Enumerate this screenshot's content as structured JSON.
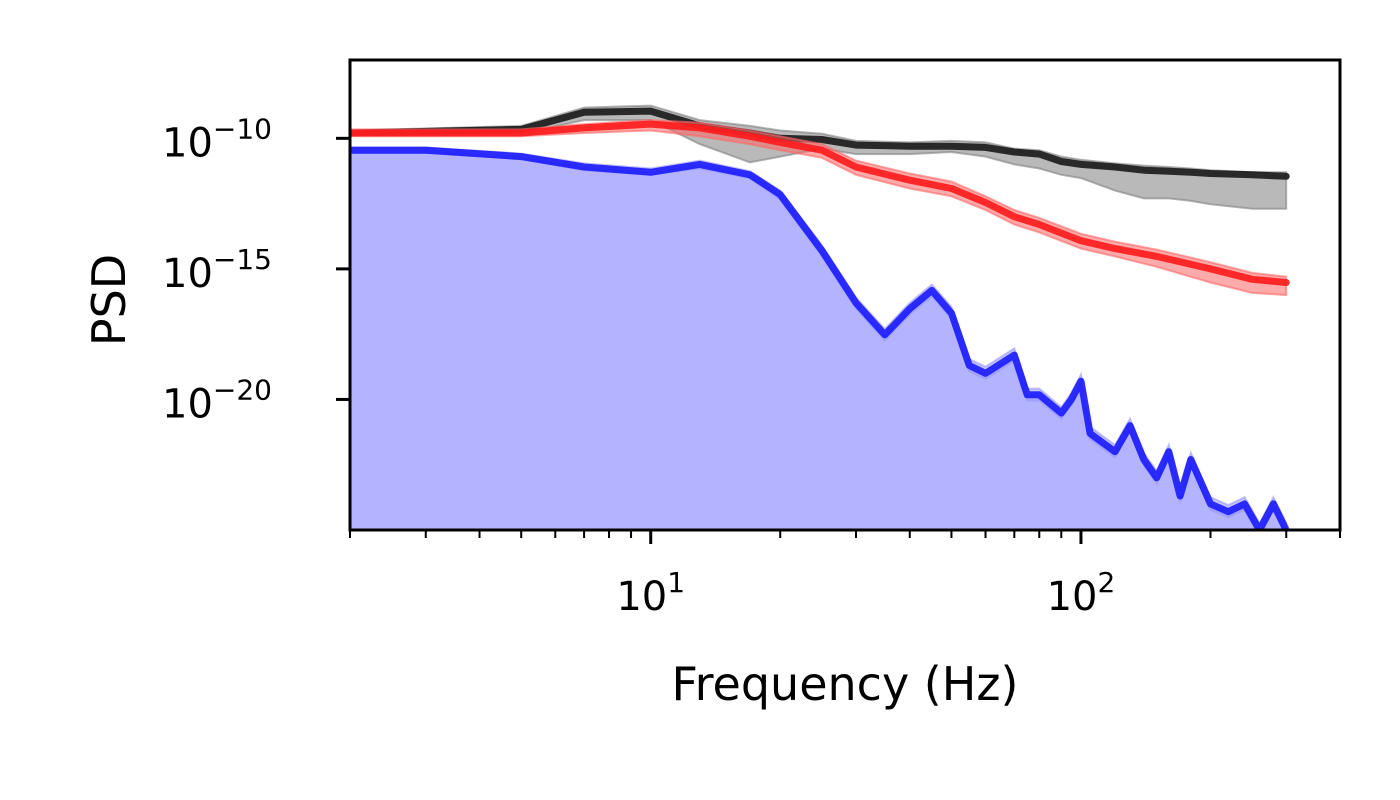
{
  "chart_data": {
    "type": "line",
    "title": "",
    "xlabel": "Frequency (Hz)",
    "ylabel": "PSD",
    "xscale": "log",
    "yscale": "log",
    "xlim": [
      2.0,
      400.0
    ],
    "ylim": [
      1e-25,
      1e-07
    ],
    "grid": false,
    "x_ticks": [
      {
        "base": "10",
        "exp": "1",
        "value": 10
      },
      {
        "base": "10",
        "exp": "2",
        "value": 100
      }
    ],
    "y_ticks": [
      {
        "base": "10",
        "exp": "−10",
        "value": 1e-10
      },
      {
        "base": "10",
        "exp": "−15",
        "value": 1e-15
      },
      {
        "base": "10",
        "exp": "−20",
        "value": 1e-20
      }
    ],
    "series": [
      {
        "color": "#1a1a1a",
        "band_color": "#808080",
        "x": [
          2,
          5,
          7,
          10,
          13,
          17,
          20,
          25,
          30,
          40,
          50,
          60,
          70,
          80,
          90,
          100,
          120,
          140,
          160,
          180,
          200,
          250,
          300
        ],
        "y": [
          1.6e-10,
          2.2e-10,
          1e-09,
          1.1e-09,
          3e-10,
          1.6e-10,
          1e-10,
          9e-11,
          5.5e-11,
          5e-11,
          5e-11,
          4.5e-11,
          3e-11,
          2.5e-11,
          1.3e-11,
          1e-11,
          8e-12,
          6e-12,
          5.5e-12,
          5e-12,
          4.5e-12,
          4e-12,
          3.5e-12
        ],
        "lower": [
          1.3e-10,
          1.5e-10,
          5e-10,
          5e-10,
          6e-11,
          1.2e-11,
          2e-11,
          4e-11,
          2.5e-11,
          2.5e-11,
          3e-11,
          2e-11,
          1e-11,
          7e-12,
          4e-12,
          3e-12,
          1e-12,
          5e-13,
          5e-13,
          4e-13,
          3e-13,
          2e-13,
          2e-13
        ],
        "upper": [
          2e-10,
          3e-10,
          1.5e-09,
          1.8e-09,
          5e-10,
          3e-10,
          2e-10,
          1.5e-10,
          8e-11,
          7e-11,
          8e-11,
          7e-11,
          4e-11,
          3.5e-11,
          2e-11,
          1.5e-11,
          1.1e-11,
          9e-12,
          8e-12,
          7e-12,
          6e-12,
          5e-12,
          5e-12
        ]
      },
      {
        "color": "#ff1a1a",
        "band_color": "#ff6666",
        "x": [
          2,
          5,
          7,
          10,
          13,
          17,
          20,
          25,
          30,
          40,
          50,
          60,
          70,
          80,
          100,
          120,
          150,
          200,
          250,
          300
        ],
        "y": [
          1.6e-10,
          1.6e-10,
          2.5e-10,
          3.5e-10,
          2.5e-10,
          1.2e-10,
          7e-11,
          3.5e-11,
          8e-12,
          2.5e-12,
          1.2e-12,
          3.5e-13,
          1e-13,
          5e-14,
          1.2e-14,
          6e-15,
          3e-15,
          1e-15,
          4e-16,
          3e-16
        ],
        "lower": [
          1.2e-10,
          1.2e-10,
          1.6e-10,
          2e-10,
          1.2e-10,
          6e-11,
          3.5e-11,
          1.8e-11,
          4e-12,
          1.2e-12,
          6e-13,
          1.8e-13,
          5e-14,
          2.5e-14,
          6e-15,
          3e-15,
          1.2e-15,
          3e-16,
          1.2e-16,
          1e-16
        ],
        "upper": [
          2.2e-10,
          2.2e-10,
          3.5e-10,
          5e-10,
          4e-10,
          2e-10,
          1.2e-10,
          6e-11,
          1.4e-11,
          4.5e-12,
          2.2e-12,
          6e-13,
          1.8e-13,
          9e-14,
          2.2e-14,
          1.1e-14,
          5.5e-15,
          1.8e-15,
          7e-16,
          5e-16
        ]
      },
      {
        "color": "#1a1aff",
        "band_color": "#9999ff",
        "fill_color": "#b3b3ff",
        "x": [
          2,
          3,
          5,
          7,
          10,
          13,
          17,
          20,
          25,
          30,
          35,
          40,
          45,
          50,
          55,
          60,
          70,
          75,
          80,
          90,
          95,
          100,
          105,
          120,
          130,
          140,
          150,
          160,
          170,
          180,
          200,
          220,
          240,
          260,
          280,
          300
        ],
        "y": [
          3.5e-11,
          3.5e-11,
          2e-11,
          8e-12,
          5e-12,
          1e-11,
          4e-12,
          7e-13,
          5e-15,
          5e-17,
          3e-18,
          3e-17,
          1.5e-16,
          2e-17,
          2e-19,
          1e-19,
          5e-19,
          1.5e-20,
          1.5e-20,
          3e-21,
          1e-20,
          5e-20,
          5e-22,
          1e-22,
          1e-21,
          5e-23,
          1e-23,
          1e-22,
          2e-24,
          5e-23,
          1e-24,
          5e-25,
          1e-24,
          1e-25,
          1e-24,
          1e-25
        ],
        "lower": [
          2.8e-11,
          2.8e-11,
          1.6e-11,
          6e-12,
          4e-12,
          7e-12,
          3e-12,
          4.5e-13,
          3e-15,
          3e-17,
          1.8e-18,
          1.8e-17,
          9e-17,
          1.2e-17,
          1.2e-19,
          6e-20,
          3e-19,
          9e-21,
          9e-21,
          1.8e-21,
          6e-21,
          3e-20,
          3e-22,
          6e-23,
          6e-22,
          3e-23,
          6e-24,
          6e-23,
          1.2e-24,
          3e-23,
          6e-25,
          3e-25,
          6e-25,
          6e-26,
          6e-25,
          6e-26
        ],
        "upper": [
          4.5e-11,
          4.5e-11,
          2.6e-11,
          1.1e-11,
          7e-12,
          1.4e-11,
          5.5e-12,
          1e-12,
          8e-15,
          8e-17,
          5e-18,
          5e-17,
          2.5e-16,
          3.5e-17,
          3.5e-19,
          1.8e-19,
          9e-19,
          2.6e-20,
          2.6e-20,
          5e-21,
          1.8e-20,
          9e-20,
          9e-22,
          1.8e-22,
          1.8e-21,
          9e-23,
          1.8e-23,
          1.8e-22,
          3.5e-24,
          9e-23,
          1.8e-24,
          9e-25,
          1.8e-24,
          1.8e-25,
          1.8e-24,
          1.8e-25
        ]
      }
    ]
  }
}
